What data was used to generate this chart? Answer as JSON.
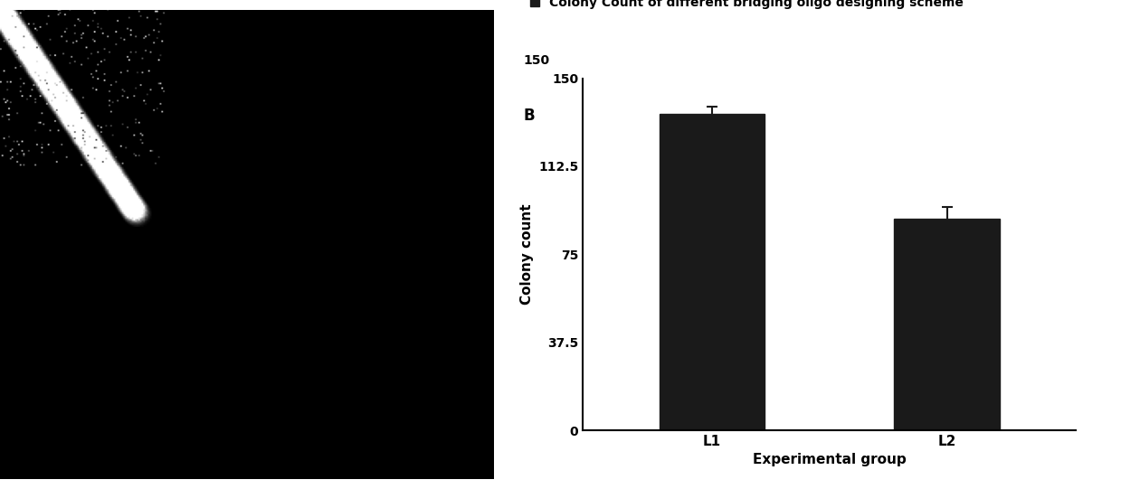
{
  "categories": [
    "L1",
    "L2"
  ],
  "values": [
    135,
    90
  ],
  "errors": [
    3,
    5
  ],
  "bar_color": "#1a1a1a",
  "title": "Colony Count of different bridging oligo designing scheme",
  "ylabel": "Colony count",
  "xlabel": "Experimental group",
  "ylim": [
    0,
    150
  ],
  "yticks": [
    0,
    37.5,
    75,
    112.5,
    150
  ],
  "ytick_labels": [
    "0",
    "37.5",
    "75",
    "112.5",
    "150"
  ],
  "annotation_B": "B",
  "legend_label": "Colony Count of different bridging oligo designing scheme",
  "title_fontsize": 11,
  "label_fontsize": 11,
  "tick_fontsize": 10,
  "background_color": "#ffffff",
  "left_panel_color": "#0a0a0a",
  "bar_width": 0.45
}
